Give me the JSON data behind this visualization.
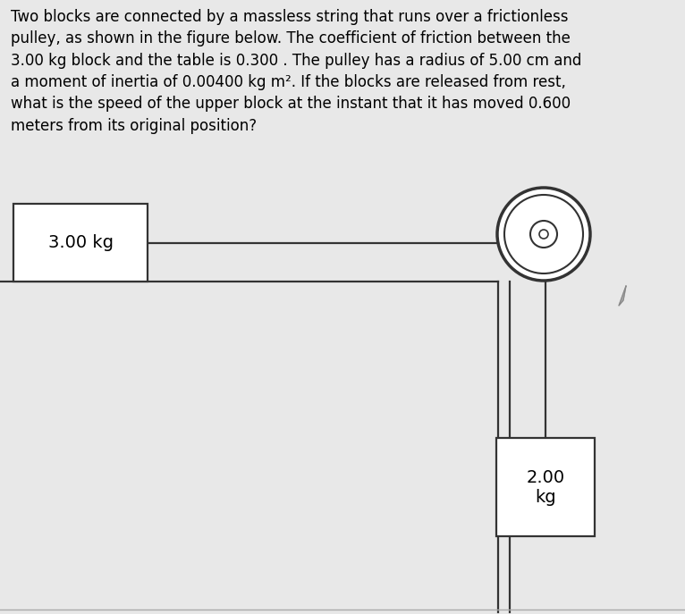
{
  "bg_color": "#e8e8e8",
  "text_color": "#000000",
  "question_text": "Two blocks are connected by a massless string that runs over a frictionless\npulley, as shown in the figure below. The coefficient of friction between the\n3.00 kg block and the table is 0.300 . The pulley has a radius of 5.00 cm and\na moment of inertia of 0.00400 kg m². If the blocks are released from rest,\nwhat is the speed of the upper block at the instant that it has moved 0.600\nmeters from its original position?",
  "block1_label": "3.00 kg",
  "block2_label": "2.00\nkg",
  "string_color": "#333333",
  "block_edge_color": "#333333",
  "block_face_color": "#ffffff",
  "pulley_face_color": "#ffffff",
  "pulley_edge_color": "#333333",
  "line_width": 1.6,
  "text_fontsize": 12.0,
  "block1_fontsize": 14,
  "block2_fontsize": 14,
  "cursor_color": "#aaaaaa",
  "cursor_edge_color": "#888888"
}
